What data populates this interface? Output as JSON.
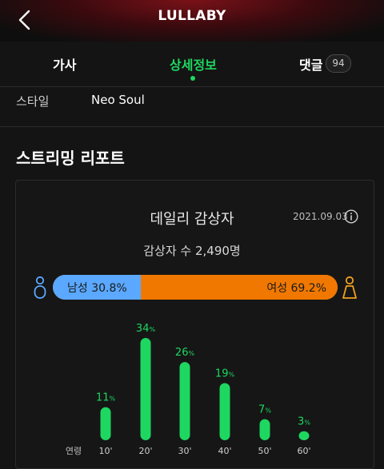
{
  "header": {
    "title": "LULLABY",
    "back_icon": "chevron-left-icon"
  },
  "tabs": [
    {
      "label": "가사",
      "active": false
    },
    {
      "label": "상세정보",
      "active": true
    },
    {
      "label": "댓글",
      "active": false,
      "badge": "94"
    }
  ],
  "info": {
    "style_label": "스타일",
    "style_value": "Neo Soul"
  },
  "report": {
    "section_title": "스트리밍 리포트",
    "card_title": "데일리 감상자",
    "date": "2021.09.03",
    "listener_count": "감상자 수 2,490명",
    "gender": {
      "male_label": "남성 30.8%",
      "female_label": "여성 69.2%",
      "male_value": 30.8,
      "female_value": 69.2,
      "male_color": "#5aa8ff",
      "female_color": "#f07800"
    }
  },
  "colors": {
    "accent": "#1ed760",
    "background": "#141414"
  },
  "chart_data": {
    "type": "bar",
    "xlabel": "연령",
    "categories": [
      "10'",
      "20'",
      "30'",
      "40'",
      "50'",
      "60'"
    ],
    "values": [
      11,
      34,
      26,
      19,
      7,
      3
    ],
    "value_suffix": "%",
    "bar_color": "#1ed760",
    "ylim": [
      0,
      34
    ],
    "grid": false
  }
}
